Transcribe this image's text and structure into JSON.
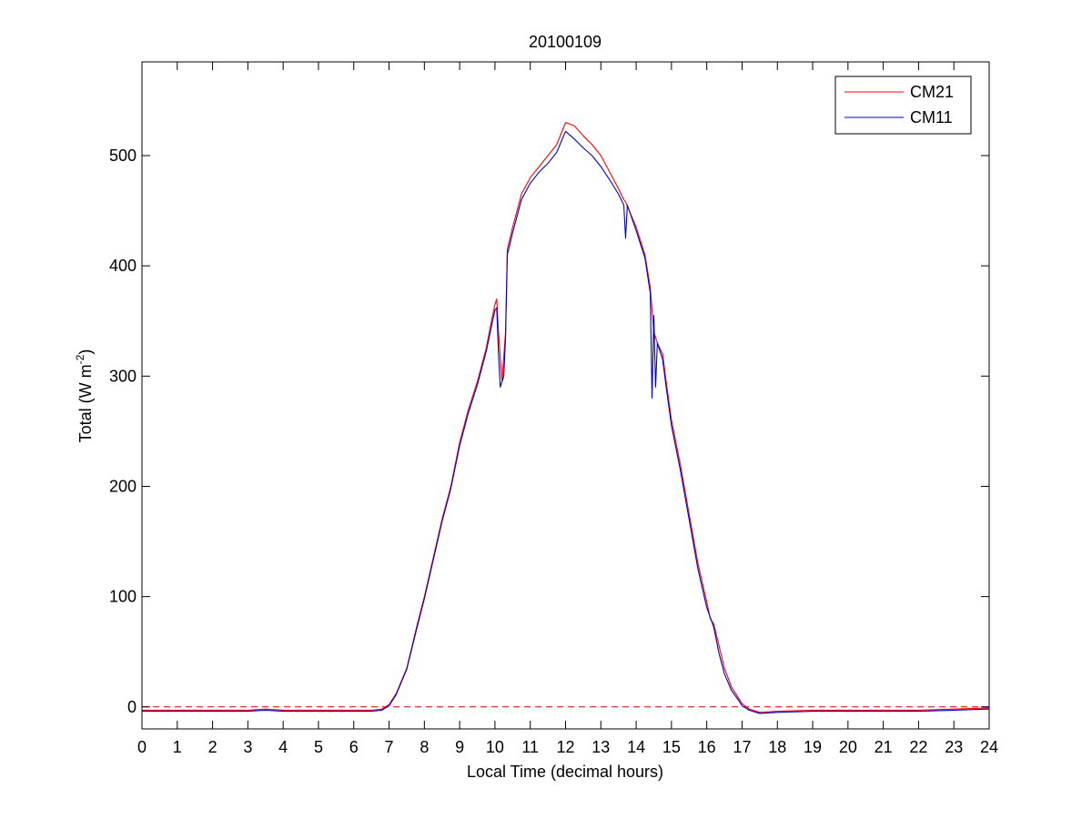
{
  "chart_data": {
    "type": "line",
    "title": "20100109",
    "xlabel": "Local Time (decimal hours)",
    "ylabel_main": "Total (W m",
    "ylabel_sup": "-2",
    "ylabel_close": ")",
    "xlim": [
      0,
      24
    ],
    "ylim": [
      -20,
      585
    ],
    "xticks": [
      0,
      1,
      2,
      3,
      4,
      5,
      6,
      7,
      8,
      9,
      10,
      11,
      12,
      13,
      14,
      15,
      16,
      17,
      18,
      19,
      20,
      21,
      22,
      23,
      24
    ],
    "yticks": [
      0,
      100,
      200,
      300,
      400,
      500
    ],
    "grid": false,
    "legend_position": "top-right",
    "reference_line": {
      "y": 0,
      "color": "#cc0000",
      "style": "dashed"
    },
    "series": [
      {
        "name": "CM21",
        "color": "#ff0000",
        "points": [
          [
            0,
            -3
          ],
          [
            0.5,
            -3
          ],
          [
            1,
            -3
          ],
          [
            1.5,
            -3
          ],
          [
            2,
            -3
          ],
          [
            2.5,
            -3
          ],
          [
            3,
            -3
          ],
          [
            3.5,
            -2
          ],
          [
            4,
            -3
          ],
          [
            4.5,
            -3
          ],
          [
            5,
            -3
          ],
          [
            5.5,
            -3
          ],
          [
            6,
            -3
          ],
          [
            6.5,
            -3
          ],
          [
            6.8,
            -2
          ],
          [
            7,
            2
          ],
          [
            7.2,
            12
          ],
          [
            7.5,
            35
          ],
          [
            7.8,
            75
          ],
          [
            8,
            100
          ],
          [
            8.25,
            135
          ],
          [
            8.5,
            170
          ],
          [
            8.75,
            200
          ],
          [
            9,
            240
          ],
          [
            9.25,
            270
          ],
          [
            9.5,
            295
          ],
          [
            9.75,
            325
          ],
          [
            9.9,
            350
          ],
          [
            10,
            365
          ],
          [
            10.05,
            370
          ],
          [
            10.1,
            340
          ],
          [
            10.2,
            295
          ],
          [
            10.3,
            340
          ],
          [
            10.35,
            415
          ],
          [
            10.5,
            435
          ],
          [
            10.75,
            465
          ],
          [
            11,
            480
          ],
          [
            11.25,
            490
          ],
          [
            11.5,
            500
          ],
          [
            11.75,
            510
          ],
          [
            12,
            530
          ],
          [
            12.25,
            527
          ],
          [
            12.5,
            518
          ],
          [
            12.75,
            510
          ],
          [
            13,
            500
          ],
          [
            13.25,
            485
          ],
          [
            13.5,
            470
          ],
          [
            13.65,
            460
          ],
          [
            13.7,
            458
          ],
          [
            14,
            435
          ],
          [
            14.25,
            410
          ],
          [
            14.4,
            380
          ],
          [
            14.5,
            340
          ],
          [
            14.6,
            330
          ],
          [
            14.75,
            320
          ],
          [
            14.85,
            295
          ],
          [
            15,
            260
          ],
          [
            15.25,
            220
          ],
          [
            15.5,
            175
          ],
          [
            15.75,
            130
          ],
          [
            16,
            95
          ],
          [
            16.1,
            80
          ],
          [
            16.2,
            75
          ],
          [
            16.35,
            55
          ],
          [
            16.5,
            35
          ],
          [
            16.7,
            18
          ],
          [
            16.9,
            8
          ],
          [
            17,
            3
          ],
          [
            17.2,
            -2
          ],
          [
            17.5,
            -5
          ],
          [
            18,
            -4
          ],
          [
            19,
            -3
          ],
          [
            20,
            -3
          ],
          [
            21,
            -3
          ],
          [
            22,
            -3
          ],
          [
            23,
            -2
          ],
          [
            24,
            -1
          ]
        ]
      },
      {
        "name": "CM11",
        "color": "#0000cc",
        "points": [
          [
            0,
            -4
          ],
          [
            0.5,
            -4
          ],
          [
            1,
            -4
          ],
          [
            1.5,
            -4
          ],
          [
            2,
            -4
          ],
          [
            2.5,
            -4
          ],
          [
            3,
            -4
          ],
          [
            3.5,
            -3
          ],
          [
            4,
            -4
          ],
          [
            4.5,
            -4
          ],
          [
            5,
            -4
          ],
          [
            5.5,
            -4
          ],
          [
            6,
            -4
          ],
          [
            6.5,
            -4
          ],
          [
            6.8,
            -3
          ],
          [
            7,
            1
          ],
          [
            7.2,
            11
          ],
          [
            7.5,
            34
          ],
          [
            7.8,
            73
          ],
          [
            8,
            98
          ],
          [
            8.25,
            133
          ],
          [
            8.5,
            168
          ],
          [
            8.75,
            198
          ],
          [
            9,
            237
          ],
          [
            9.25,
            267
          ],
          [
            9.5,
            292
          ],
          [
            9.75,
            322
          ],
          [
            9.9,
            345
          ],
          [
            10,
            360
          ],
          [
            10.05,
            362
          ],
          [
            10.1,
            320
          ],
          [
            10.15,
            290
          ],
          [
            10.25,
            300
          ],
          [
            10.3,
            335
          ],
          [
            10.35,
            410
          ],
          [
            10.5,
            430
          ],
          [
            10.75,
            460
          ],
          [
            11,
            475
          ],
          [
            11.25,
            485
          ],
          [
            11.5,
            493
          ],
          [
            11.75,
            503
          ],
          [
            12,
            522
          ],
          [
            12.25,
            515
          ],
          [
            12.5,
            507
          ],
          [
            12.75,
            500
          ],
          [
            13,
            490
          ],
          [
            13.25,
            478
          ],
          [
            13.5,
            465
          ],
          [
            13.65,
            455
          ],
          [
            13.7,
            425
          ],
          [
            13.75,
            455
          ],
          [
            14,
            432
          ],
          [
            14.25,
            407
          ],
          [
            14.4,
            375
          ],
          [
            14.45,
            280
          ],
          [
            14.5,
            355
          ],
          [
            14.55,
            290
          ],
          [
            14.6,
            330
          ],
          [
            14.75,
            315
          ],
          [
            14.85,
            290
          ],
          [
            15,
            255
          ],
          [
            15.25,
            215
          ],
          [
            15.5,
            170
          ],
          [
            15.75,
            125
          ],
          [
            16,
            90
          ],
          [
            16.2,
            72
          ],
          [
            16.35,
            48
          ],
          [
            16.5,
            30
          ],
          [
            16.7,
            15
          ],
          [
            16.9,
            6
          ],
          [
            17,
            1
          ],
          [
            17.2,
            -3
          ],
          [
            17.5,
            -6
          ],
          [
            18,
            -5
          ],
          [
            19,
            -4
          ],
          [
            20,
            -4
          ],
          [
            21,
            -4
          ],
          [
            22,
            -4
          ],
          [
            23,
            -3
          ],
          [
            24,
            -2
          ]
        ]
      }
    ]
  }
}
